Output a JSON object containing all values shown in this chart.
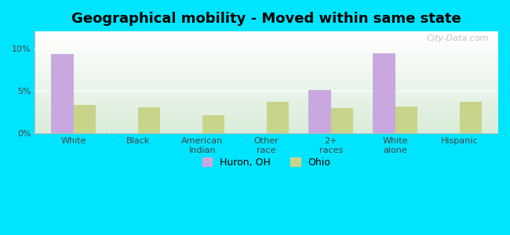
{
  "title": "Geographical mobility - Moved within same state",
  "categories": [
    "White",
    "Black",
    "American\nIndian",
    "Other\nrace",
    "2+\nraces",
    "White\nalone",
    "Hispanic"
  ],
  "huron_values": [
    9.3,
    0,
    0,
    0,
    5.1,
    9.4,
    0
  ],
  "ohio_values": [
    3.3,
    3.1,
    2.1,
    3.7,
    3.0,
    3.2,
    3.7
  ],
  "huron_color": "#c9a8e0",
  "ohio_color": "#c8d48a",
  "background_color": "#00e5ff",
  "plot_bg_top": "#ffffff",
  "plot_bg_bottom": "#d8ecd8",
  "ylim": [
    0,
    12
  ],
  "yticks": [
    0,
    5,
    10
  ],
  "ytick_labels": [
    "0%",
    "5%",
    "10%"
  ],
  "bar_width": 0.35,
  "legend_huron": "Huron, OH",
  "legend_ohio": "Ohio",
  "watermark": "City-Data.com"
}
